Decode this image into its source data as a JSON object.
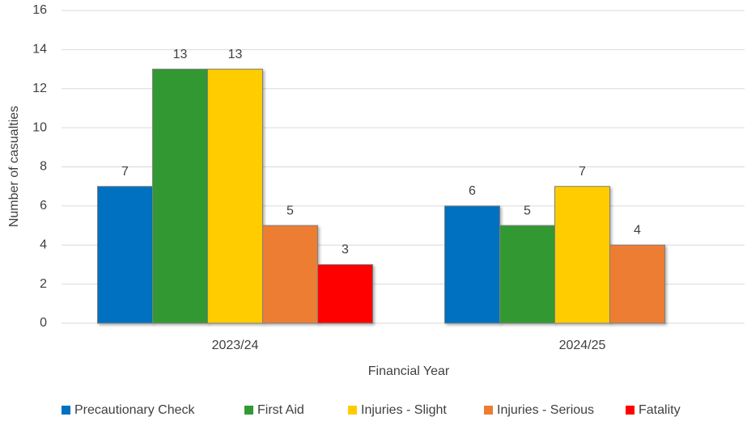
{
  "chart_data": {
    "type": "bar",
    "x_label": "Financial Year",
    "y_label": "Number of casualties",
    "categories": [
      "2023/24",
      "2024/25"
    ],
    "series": [
      {
        "name": "Precautionary Check",
        "color": "#0070c0",
        "values": [
          7,
          6
        ]
      },
      {
        "name": "First Aid",
        "color": "#339933",
        "values": [
          13,
          5
        ]
      },
      {
        "name": "Injuries - Slight",
        "color": "#ffcc00",
        "values": [
          13,
          7
        ]
      },
      {
        "name": "Injuries - Serious",
        "color": "#ed7d31",
        "values": [
          5,
          4
        ]
      },
      {
        "name": "Fatality",
        "color": "#ff0000",
        "values": [
          3,
          null
        ]
      }
    ],
    "ylim": [
      0,
      16
    ],
    "yticks": [
      0,
      2,
      4,
      6,
      8,
      10,
      12,
      14,
      16
    ],
    "grid": true,
    "legend": "bottom"
  }
}
